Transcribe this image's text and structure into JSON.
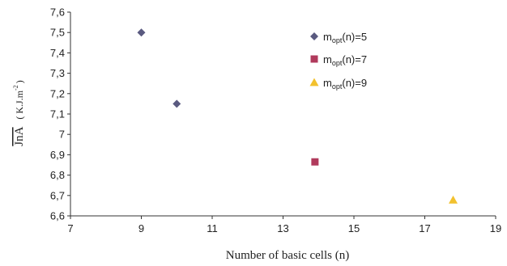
{
  "chart_data": {
    "type": "scatter",
    "title": "",
    "xlabel": "Number of basic cells (n)",
    "ylabel": {
      "main": "JnA",
      "unit": "( K.J.m",
      "exponent": "-2",
      "close": ")"
    },
    "xlim": [
      7,
      19
    ],
    "ylim": [
      6.6,
      7.6
    ],
    "x_ticks": [
      "7",
      "9",
      "11",
      "13",
      "15",
      "17",
      "19"
    ],
    "y_ticks": [
      "6,6",
      "6,7",
      "6,8",
      "6,9",
      "7",
      "7,1",
      "7,2",
      "7,3",
      "7,4",
      "7,5",
      "7,6"
    ],
    "grid": false,
    "legend_position": "top-right",
    "series": [
      {
        "label": {
          "m": "m",
          "sub": "opt",
          "rest": "(n)=5"
        },
        "color": "#5a5a80",
        "marker": "diamond",
        "points": [
          {
            "x": 9,
            "y": 7.5
          },
          {
            "x": 10,
            "y": 7.15
          }
        ]
      },
      {
        "label": {
          "m": "m",
          "sub": "opt",
          "rest": "(n)=7"
        },
        "color": "#b03a5c",
        "marker": "square",
        "points": [
          {
            "x": 13.9,
            "y": 6.865
          }
        ]
      },
      {
        "label": {
          "m": "m",
          "sub": "opt",
          "rest": "(n)=9"
        },
        "color": "#f2c12e",
        "marker": "triangle",
        "points": [
          {
            "x": 17.8,
            "y": 6.678
          }
        ]
      }
    ]
  }
}
